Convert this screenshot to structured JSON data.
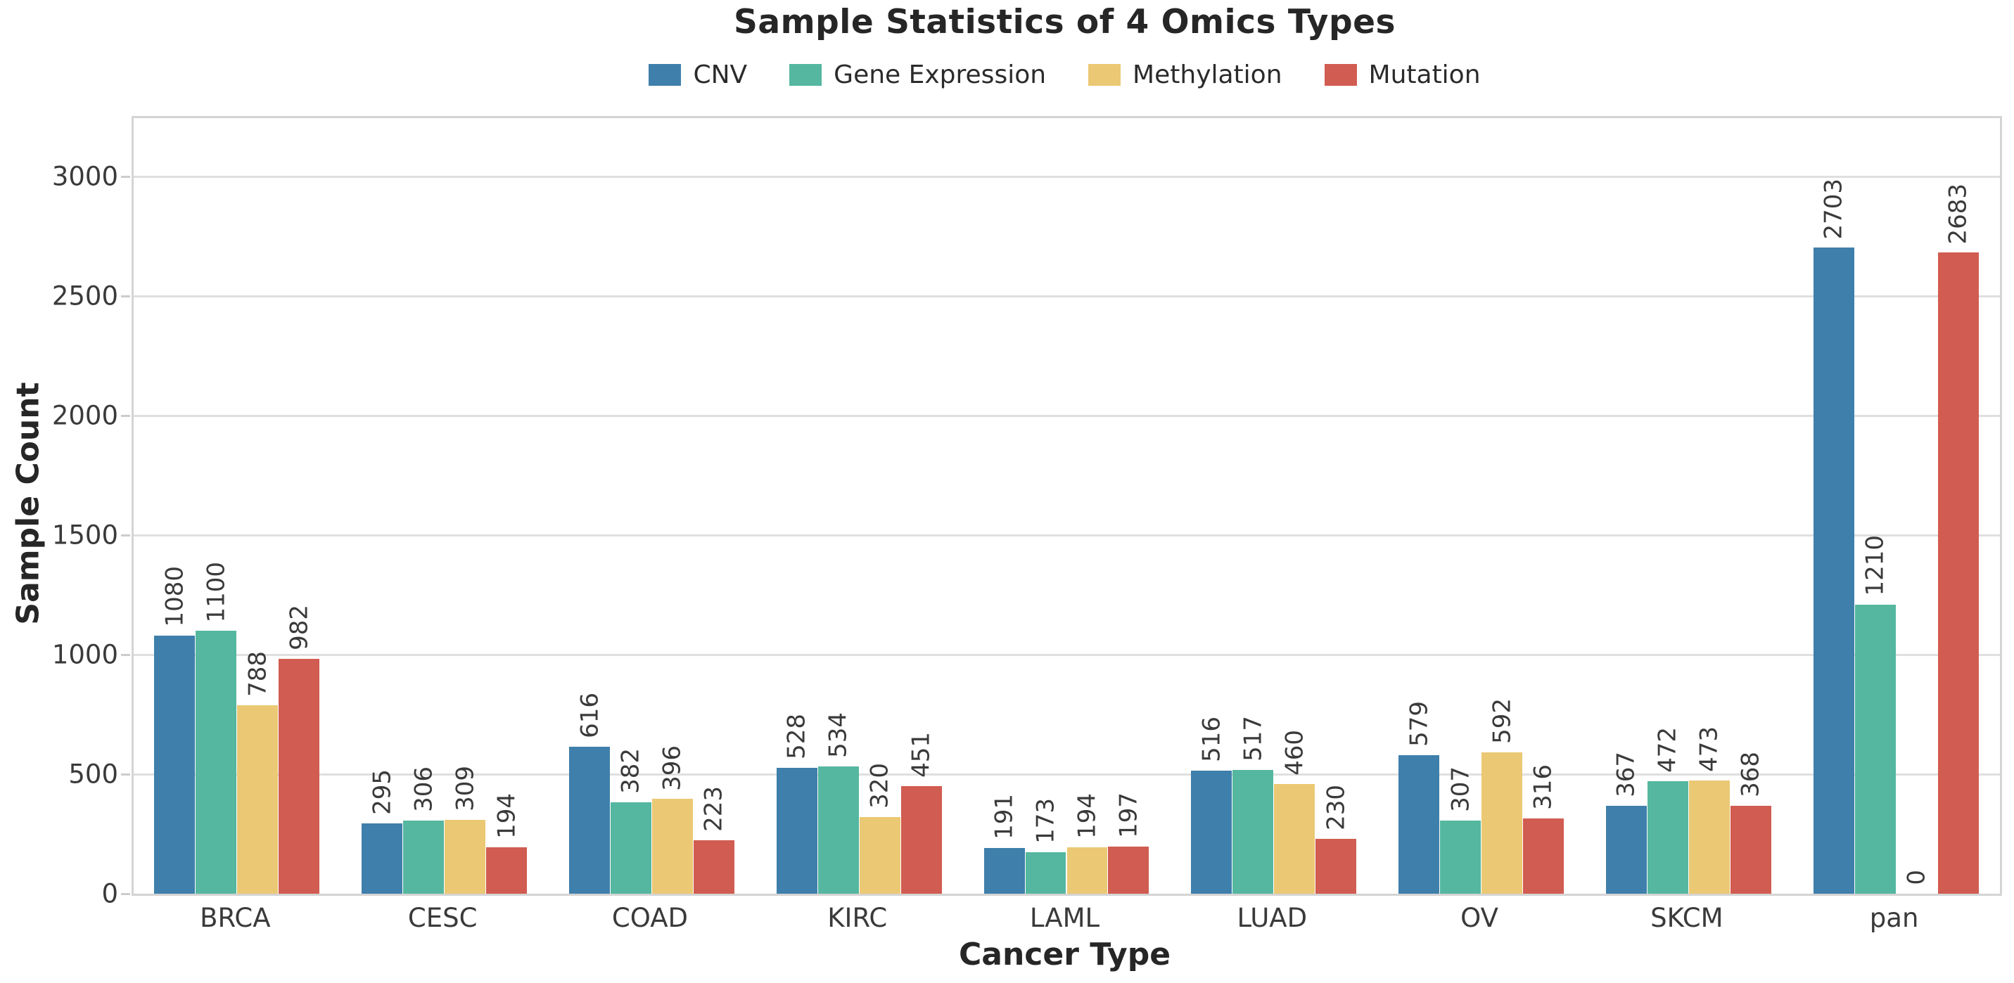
{
  "chart_data": {
    "type": "bar",
    "title": "Sample Statistics of 4 Omics Types",
    "xlabel": "Cancer Type",
    "ylabel": "Sample Count",
    "categories": [
      "BRCA",
      "CESC",
      "COAD",
      "KIRC",
      "LAML",
      "LUAD",
      "OV",
      "SKCM",
      "pan"
    ],
    "series": [
      {
        "name": "CNV",
        "color": "#3f7fab",
        "values": [
          1080,
          295,
          616,
          528,
          191,
          516,
          579,
          367,
          2703
        ]
      },
      {
        "name": "Gene Expression",
        "color": "#55b7a0",
        "values": [
          1100,
          306,
          382,
          534,
          173,
          517,
          307,
          472,
          1210
        ]
      },
      {
        "name": "Methylation",
        "color": "#ebc874",
        "values": [
          788,
          309,
          396,
          320,
          194,
          460,
          592,
          473,
          0
        ]
      },
      {
        "name": "Mutation",
        "color": "#d15c51",
        "values": [
          982,
          194,
          223,
          451,
          197,
          230,
          316,
          368,
          2683
        ]
      }
    ],
    "yticks": [
      0,
      500,
      1000,
      1500,
      2000,
      2500,
      3000
    ],
    "ylim": [
      0,
      3245
    ],
    "grid": "horizontal",
    "legend_position": "top-center",
    "bar_value_label_rotation": 90,
    "group_width_fraction": 0.8,
    "colors": {
      "grid": "#dfdfdf",
      "spine": "#d4d4d4",
      "text": "#3a3a3a",
      "title_text": "#262626"
    }
  }
}
